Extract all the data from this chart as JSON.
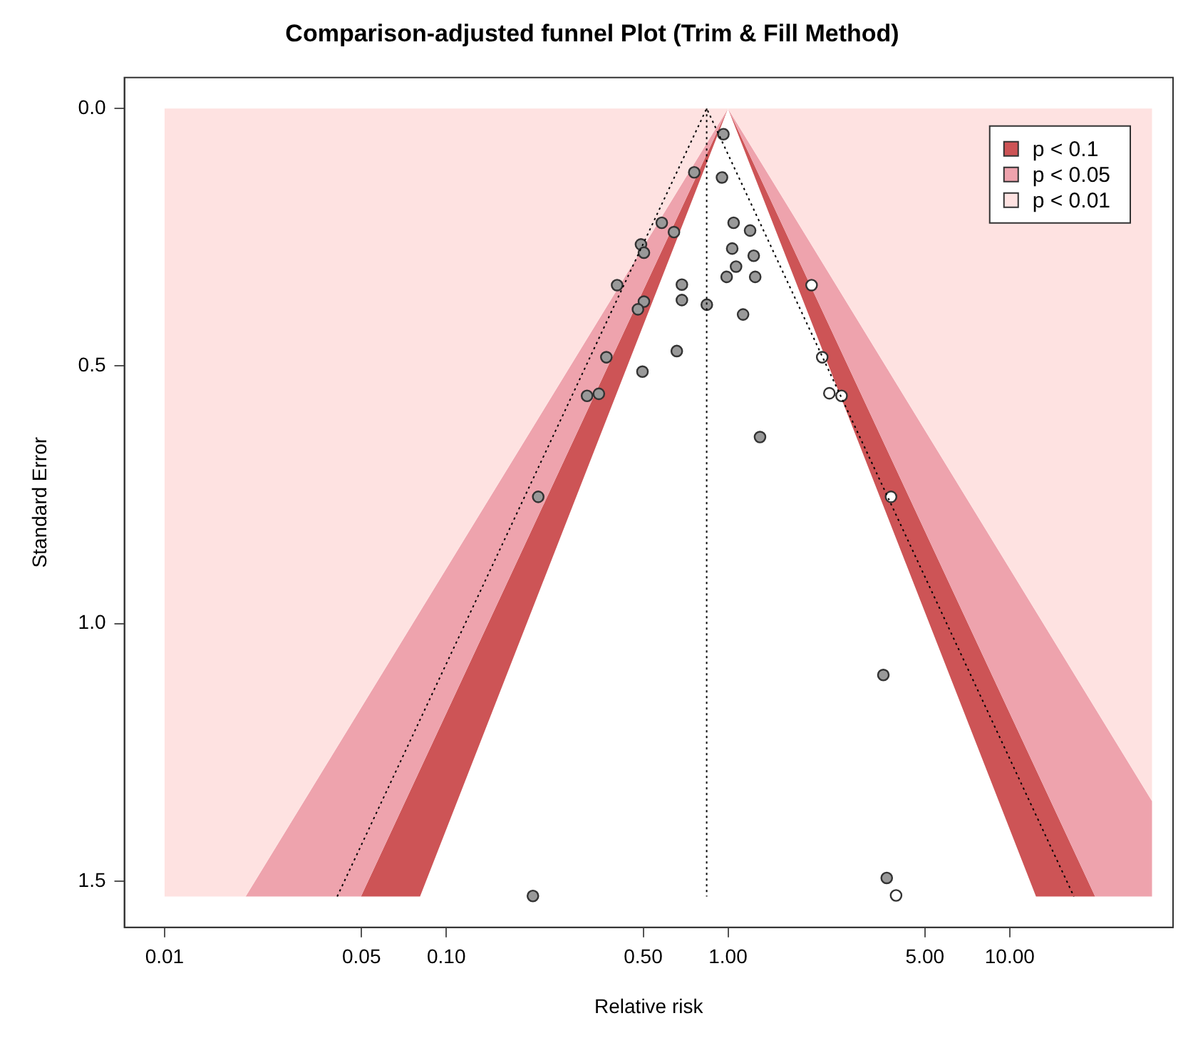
{
  "chart_data": {
    "type": "scatter",
    "title": "Comparison-adjusted funnel Plot (Trim & Fill Method)",
    "xlabel": "Relative risk",
    "ylabel": "Standard Error",
    "log": "x",
    "grid": false,
    "legend": "top right",
    "xlim": [
      0.0072,
      38
    ],
    "xticks": [
      0.01,
      0.05,
      {
        "value": 0.1,
        "label": "0.10"
      },
      {
        "value": 0.5,
        "label": "0.50"
      },
      {
        "value": 1,
        "label": "1.00"
      },
      {
        "value": 5,
        "label": "5.00"
      },
      {
        "value": 10,
        "label": "10.00"
      }
    ],
    "ylim": [
      1.59,
      -0.06
    ],
    "yticks": [
      {
        "value": 0,
        "label": "0.0"
      },
      0.5,
      {
        "value": 1,
        "label": "1.0"
      },
      1.5
    ],
    "series": [
      {
        "name": "p < 0.1",
        "type": "area",
        "color": "#cd5456",
        "x": [
          1,
          20.1,
          12.4,
          1,
          0.0807,
          0.0498
        ],
        "values": [
          0,
          1.53,
          1.53,
          0,
          1.53,
          1.53
        ]
      },
      {
        "name": "p < 0.05",
        "type": "area",
        "color": "#eea3ad",
        "x": [
          1,
          32,
          32,
          20.1,
          1,
          0.0498,
          0.0194
        ],
        "values": [
          0,
          1.345,
          1.53,
          1.53,
          0,
          1.53,
          1.53
        ]
      },
      {
        "name": "p < 0.01",
        "type": "area",
        "color": "#fee2e1",
        "x": [
          0.01,
          32,
          32,
          1,
          0.0194,
          0.01
        ],
        "values": [
          0,
          0,
          1.345,
          0,
          1.53,
          1.53
        ]
      },
      {
        "type": "line",
        "color": "#000000",
        "line_style": "dotted",
        "x": [
          0.041,
          0.84,
          16.9
        ],
        "values": [
          1.53,
          0,
          1.53
        ]
      },
      {
        "type": "line",
        "color": "#000000",
        "line_style": "dotted",
        "x": [
          0.84,
          0.84
        ],
        "values": [
          0,
          1.53
        ]
      },
      {
        "marker": "circle",
        "color": "#999999",
        "x": [
          0.963,
          0.759,
          0.952,
          0.582,
          0.643,
          0.491,
          0.503,
          1.047,
          1.198,
          1.035,
          1.234,
          1.068,
          0.989,
          1.249,
          0.404,
          0.686,
          0.686,
          0.503,
          0.479,
          0.841,
          1.131,
          0.37,
          0.658,
          0.497,
          0.316,
          0.348,
          1.299,
          0.212,
          3.56,
          3.66,
          0.203
        ],
        "values": [
          0.05,
          0.124,
          0.134,
          0.222,
          0.24,
          0.264,
          0.28,
          0.222,
          0.237,
          0.272,
          0.286,
          0.307,
          0.327,
          0.327,
          0.343,
          0.342,
          0.372,
          0.375,
          0.39,
          0.381,
          0.4,
          0.483,
          0.471,
          0.511,
          0.558,
          0.554,
          0.638,
          0.754,
          1.1,
          1.494,
          1.529
        ]
      },
      {
        "marker": "circle",
        "color": "#ffffff",
        "x": [
          1.98,
          2.16,
          2.29,
          2.53,
          3.79,
          3.95
        ],
        "values": [
          0.343,
          0.483,
          0.553,
          0.558,
          0.754,
          1.528
        ]
      }
    ]
  }
}
